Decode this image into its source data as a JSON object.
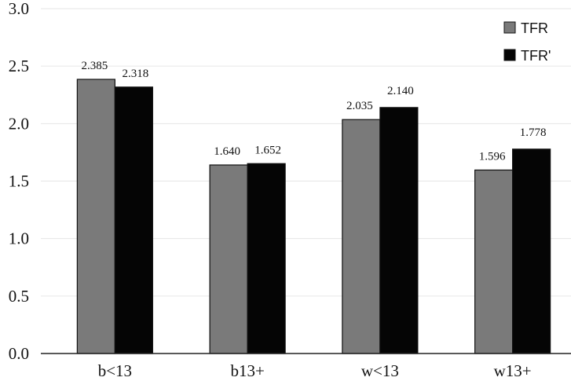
{
  "chart_data": {
    "type": "bar",
    "categories": [
      "b<13",
      "b13+",
      "w<13",
      "w13+"
    ],
    "series": [
      {
        "name": "TFR",
        "values": [
          2.385,
          1.64,
          2.035,
          1.596
        ],
        "labels": [
          "2.385",
          "1.640",
          "2.035",
          "1.596"
        ],
        "color": "#7a7a7a"
      },
      {
        "name": "TFR'",
        "values": [
          2.318,
          1.652,
          2.14,
          1.778
        ],
        "labels": [
          "2.318",
          "1.652",
          "2.140",
          "1.778"
        ],
        "color": "#050505"
      }
    ],
    "yticks": [
      "0.0",
      "0.5",
      "1.0",
      "1.5",
      "2.0",
      "2.5",
      "3.0"
    ],
    "ylim": [
      0,
      3.0
    ],
    "title": "",
    "xlabel": "",
    "ylabel": "",
    "grid": true,
    "legend_position": "top-right"
  }
}
